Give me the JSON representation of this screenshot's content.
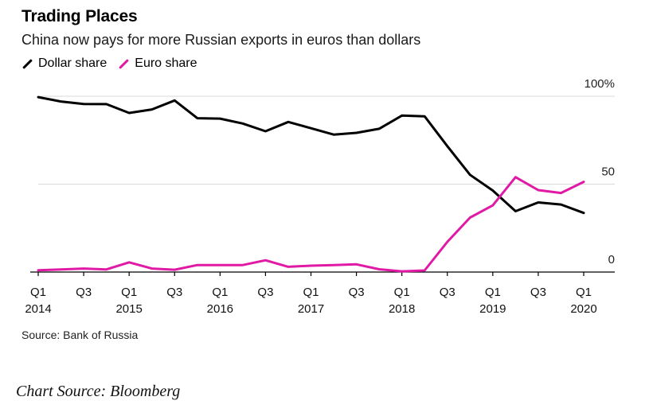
{
  "chart_data": {
    "type": "line",
    "title": "Trading Places",
    "subtitle": "China now pays for more Russian exports in euros than dollars",
    "x": [
      "Q1 2014",
      "Q2 2014",
      "Q3 2014",
      "Q4 2014",
      "Q1 2015",
      "Q2 2015",
      "Q3 2015",
      "Q4 2015",
      "Q1 2016",
      "Q2 2016",
      "Q3 2016",
      "Q4 2016",
      "Q1 2017",
      "Q2 2017",
      "Q3 2017",
      "Q4 2017",
      "Q1 2018",
      "Q2 2018",
      "Q3 2018",
      "Q4 2018",
      "Q1 2019",
      "Q2 2019",
      "Q3 2019",
      "Q4 2019",
      "Q1 2020"
    ],
    "x_tick_labels": [
      {
        "label": "Q1",
        "year": "2014"
      },
      {
        "label": "Q3",
        "year": ""
      },
      {
        "label": "Q1",
        "year": "2015"
      },
      {
        "label": "Q3",
        "year": ""
      },
      {
        "label": "Q1",
        "year": "2016"
      },
      {
        "label": "Q3",
        "year": ""
      },
      {
        "label": "Q1",
        "year": "2017"
      },
      {
        "label": "Q3",
        "year": ""
      },
      {
        "label": "Q1",
        "year": "2018"
      },
      {
        "label": "Q3",
        "year": ""
      },
      {
        "label": "Q1",
        "year": "2019"
      },
      {
        "label": "Q3",
        "year": ""
      },
      {
        "label": "Q1",
        "year": "2020"
      }
    ],
    "y_ticks": [
      {
        "value": 0,
        "label": "0"
      },
      {
        "value": 50,
        "label": "50"
      },
      {
        "value": 100,
        "label": "100%"
      }
    ],
    "ylim": [
      0,
      100
    ],
    "grid": true,
    "legend_position": "top-left",
    "series": [
      {
        "name": "Dollar share",
        "color": "#000000",
        "values": [
          99.5,
          97,
          95.6,
          95.5,
          90.5,
          92.5,
          97.6,
          87.5,
          87.3,
          84.5,
          80.1,
          85.4,
          81.8,
          78.2,
          79.2,
          81.5,
          89,
          88.6,
          71.6,
          55.3,
          46.4,
          34.6,
          39.6,
          38.4,
          33.6
        ]
      },
      {
        "name": "Euro share",
        "color": "#e01aa5",
        "values": [
          1,
          1.5,
          2,
          1.5,
          5.5,
          2,
          1.3,
          4,
          4,
          4,
          6.7,
          3,
          3.6,
          4,
          4.4,
          1.6,
          0.4,
          0.9,
          17.2,
          31,
          37.9,
          54,
          46.6,
          45,
          51.3
        ]
      }
    ]
  },
  "source": "Source: Bank of Russia",
  "credit": "Chart Source: Bloomberg"
}
